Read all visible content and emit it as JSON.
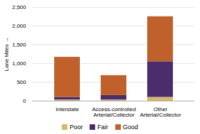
{
  "chart_data": {
    "type": "bar",
    "stacked": true,
    "categories": [
      "Interstate",
      "Access-controlled\nArterial/Collector",
      "Other\nArterial/Collector"
    ],
    "series": [
      {
        "name": "Poor",
        "color": "#d4b96a",
        "values": [
          30,
          30,
          100
        ]
      },
      {
        "name": "Fair",
        "color": "#4b2d6e",
        "values": [
          70,
          120,
          950
        ]
      },
      {
        "name": "Good",
        "color": "#c0612b",
        "values": [
          1070,
          530,
          1200
        ]
      }
    ],
    "ylabel": "Lane Miles",
    "ylim": [
      0,
      2500
    ],
    "yticks": [
      0,
      500,
      1000,
      1500,
      2000,
      2500
    ],
    "grid": true,
    "legend": "bottom"
  }
}
